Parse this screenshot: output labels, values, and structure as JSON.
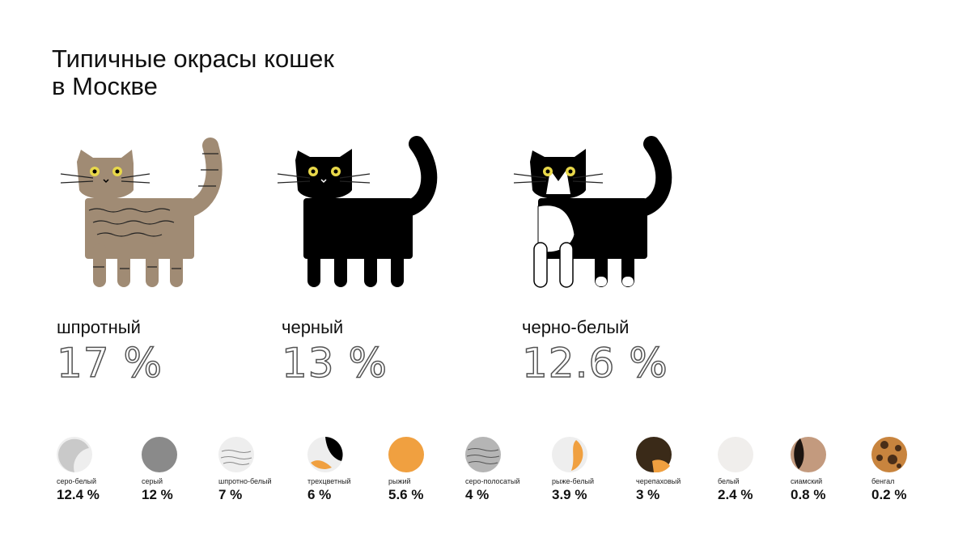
{
  "title": {
    "line1": "Типичные окрасы кошек",
    "line2": "в Москве"
  },
  "top": [
    {
      "label": "шпротный",
      "pct": "17 %"
    },
    {
      "label": "черный",
      "pct": "13 %"
    },
    {
      "label": "черно-белый",
      "pct": "12.6 %"
    }
  ],
  "colors": {
    "tabby_brown": "#a08b74",
    "black": "#000000",
    "white": "#ffffff",
    "eye_yellow": "#e8d84a",
    "orange": "#f0a040",
    "gray": "#8a8a8a",
    "light_gray": "#c9c9c9",
    "off_white": "#eeeeee",
    "siamese": "#c39a7e",
    "bengal": "#c8843e"
  },
  "chart_data": {
    "type": "bar",
    "categories": [
      "шпротный",
      "черный",
      "черно-белый",
      "серо-белый",
      "серый",
      "шпротно-белый",
      "трехцветный",
      "рыжий",
      "серо-полосатый",
      "рыже-белый",
      "черепаховый",
      "белый",
      "сиамский",
      "бенгал"
    ],
    "values": [
      17,
      13,
      12.6,
      12.4,
      12,
      7,
      6,
      5.6,
      4,
      3.9,
      3,
      2.4,
      0.8,
      0.2
    ],
    "title": "Типичные окрасы кошек в Москве",
    "unit": "%"
  },
  "chips": [
    {
      "name": "серо-белый",
      "value": "12.4 %"
    },
    {
      "name": "серый",
      "value": "12 %"
    },
    {
      "name": "шпротно-белый",
      "value": "7 %"
    },
    {
      "name": "трехцветный",
      "value": "6 %"
    },
    {
      "name": "рыжий",
      "value": "5.6 %"
    },
    {
      "name": "серо-полосатый",
      "value": "4 %"
    },
    {
      "name": "рыже-белый",
      "value": "3.9 %"
    },
    {
      "name": "черепаховый",
      "value": "3 %"
    },
    {
      "name": "белый",
      "value": "2.4 %"
    },
    {
      "name": "сиамский",
      "value": "0.8 %"
    },
    {
      "name": "бенгал",
      "value": "0.2 %"
    }
  ]
}
